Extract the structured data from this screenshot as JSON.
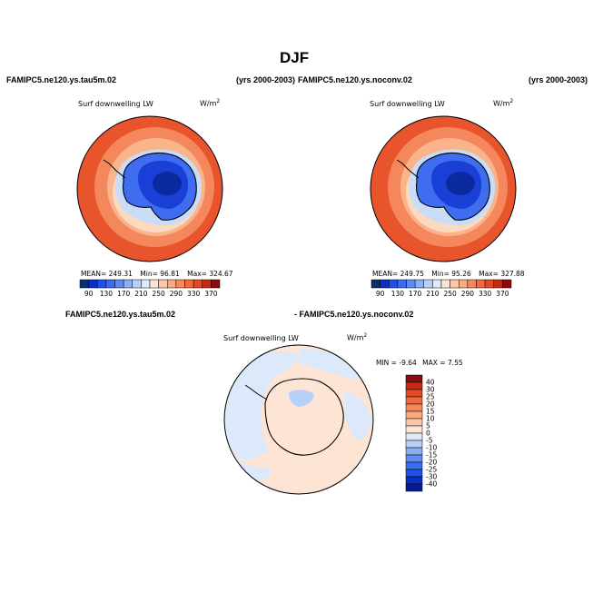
{
  "page": {
    "title": "DJF",
    "left_header": "FAMIPC5.ne120.ys.tau5m.02",
    "left_years": "(yrs 2000-2003)",
    "right_header": "FAMIPC5.ne120.ys.noconv.02",
    "right_years": "(yrs 2000-2003)",
    "diff_header_a": "FAMIPC5.ne120.ys.tau5m.02",
    "diff_header_b": "- FAMIPC5.ne120.ys.noconv.02"
  },
  "panels": [
    {
      "variable": "Surf downwelling LW",
      "units": "W/m",
      "units_exp": "2",
      "stats": {
        "mean_label": "MEAN=",
        "mean": "249.31",
        "min_label": "Min=",
        "min": "96.81",
        "max_label": "Max=",
        "max": "324.67"
      }
    },
    {
      "variable": "Surf downwelling LW",
      "units": "W/m",
      "units_exp": "2",
      "stats": {
        "mean_label": "MEAN=",
        "mean": "249.75",
        "min_label": "Min=",
        "min": "95.26",
        "max_label": "Max=",
        "max": "327.88"
      }
    },
    {
      "variable": "Surf downwelling LW",
      "units": "W/m",
      "units_exp": "2",
      "stats": {
        "min_label": "MIN =",
        "min": "-9.64",
        "max_label": "MAX =",
        "max": "7.55"
      }
    }
  ],
  "colorbar_abs": {
    "colors": [
      "#08306b",
      "#0b2fc0",
      "#1f50e8",
      "#3b6cf0",
      "#5d8cf2",
      "#8ab0f4",
      "#b7d0f7",
      "#dfe9fb",
      "#fde4d4",
      "#fcc7a8",
      "#fbaa80",
      "#f8875a",
      "#f26a3c",
      "#e34a24",
      "#c22a14",
      "#8b0c0c"
    ],
    "tick_labels": [
      "90",
      "130",
      "170",
      "210",
      "250",
      "290",
      "330",
      "370"
    ]
  },
  "colorbar_diff": {
    "colors": [
      "#0a1a8a",
      "#0b2fc0",
      "#1f50e8",
      "#3b6cf0",
      "#5d8cf2",
      "#8ab0f4",
      "#b7d0f7",
      "#dce9fa",
      "#fde4d4",
      "#fcc7a8",
      "#fbaa80",
      "#f8875a",
      "#f26a3c",
      "#e34a24",
      "#c22a14",
      "#8b0c0c"
    ],
    "tick_labels": [
      "40",
      "30",
      "25",
      "20",
      "15",
      "10",
      "5",
      "0",
      "-5",
      "-10",
      "-15",
      "-20",
      "-25",
      "-30",
      "-40"
    ]
  },
  "map_colors": {
    "ocean_outer": "#e8542c",
    "ocean_mid": "#f5875c",
    "ocean_inner": "#fab48c",
    "sea_ice": "#fdd9c0",
    "ice_edge": "#c9dcf8",
    "ice_shelf": "#8ab0f4",
    "land_outer": "#3e6df0",
    "land_inner": "#1a3fd6",
    "land_core": "#0a2a9e",
    "diff_bg": "#fde4d4",
    "diff_neg": "#dce9fa",
    "diff_neg2": "#b7d0f7"
  }
}
